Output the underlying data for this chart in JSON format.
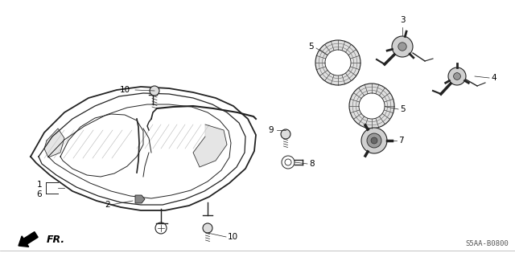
{
  "bg_color": "#ffffff",
  "part_number": "S5AA-B0800",
  "fr_label": "FR.",
  "line_color": "#222222",
  "gray_color": "#888888",
  "dark_gray": "#444444"
}
